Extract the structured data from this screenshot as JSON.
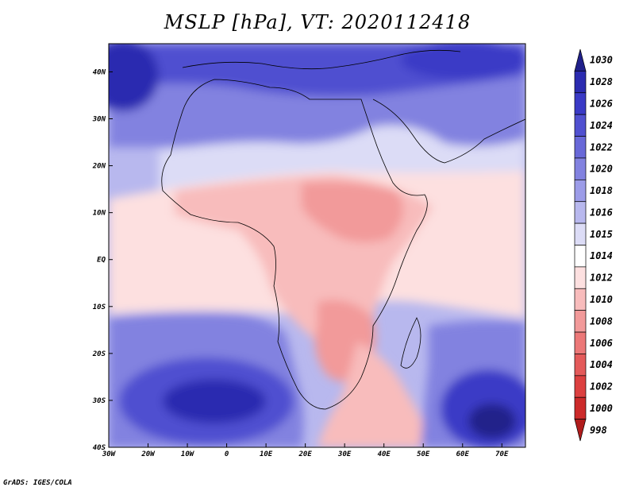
{
  "title": "MSLP [hPa], VT: 2020112418",
  "credit": "GrADS: IGES/COLA",
  "map": {
    "projection": "latlon",
    "lon_range": [
      -30,
      76
    ],
    "lat_range": [
      -40,
      46
    ],
    "lon_ticks": [
      {
        "value": -30,
        "label": "30W"
      },
      {
        "value": -20,
        "label": "20W"
      },
      {
        "value": -10,
        "label": "10W"
      },
      {
        "value": 0,
        "label": "0"
      },
      {
        "value": 10,
        "label": "10E"
      },
      {
        "value": 20,
        "label": "20E"
      },
      {
        "value": 30,
        "label": "30E"
      },
      {
        "value": 40,
        "label": "40E"
      },
      {
        "value": 50,
        "label": "50E"
      },
      {
        "value": 60,
        "label": "60E"
      },
      {
        "value": 70,
        "label": "70E"
      }
    ],
    "lat_ticks": [
      {
        "value": 40,
        "label": "40N"
      },
      {
        "value": 30,
        "label": "30N"
      },
      {
        "value": 20,
        "label": "20N"
      },
      {
        "value": 10,
        "label": "10N"
      },
      {
        "value": 0,
        "label": "EQ"
      },
      {
        "value": -10,
        "label": "10S"
      },
      {
        "value": -20,
        "label": "20S"
      },
      {
        "value": -30,
        "label": "30S"
      },
      {
        "value": -40,
        "label": "40S"
      }
    ],
    "field": "MSLP",
    "units": "hPa"
  },
  "colorbar": {
    "levels": [
      1030,
      1028,
      1026,
      1024,
      1022,
      1020,
      1018,
      1016,
      1015,
      1014,
      1012,
      1010,
      1008,
      1006,
      1004,
      1002,
      1000,
      998
    ],
    "colors": [
      "#20208a",
      "#2b2bb0",
      "#3a3ac6",
      "#5050d0",
      "#6868d8",
      "#8282e0",
      "#9c9ce8",
      "#b8b8ee",
      "#dcdcf6",
      "#ffffff",
      "#fde0e0",
      "#f8bcbc",
      "#f29a9a",
      "#ec7878",
      "#e45a5a",
      "#dc4040",
      "#cc2a2a",
      "#b01c1c"
    ]
  }
}
